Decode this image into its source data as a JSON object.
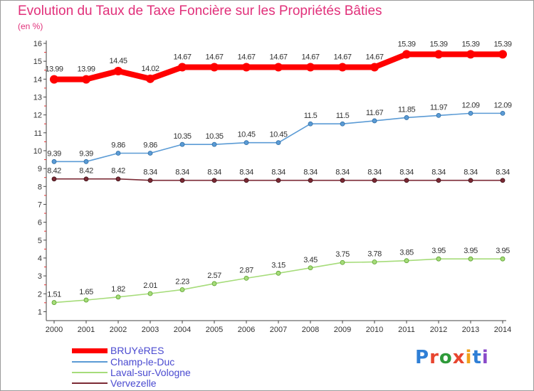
{
  "title": "Evolution du Taux de Taxe Foncière sur les Propriétés Bâties",
  "unit_label": "(en %)",
  "logo": {
    "text": "Proxiti",
    "colors": [
      "#2f7fd6",
      "#e8452f",
      "#2f9a3a",
      "#e8452f",
      "#f0a21b",
      "#2f7fd6",
      "#8a4ac8"
    ]
  },
  "chart_data": {
    "type": "line",
    "title": "Evolution du Taux de Taxe Foncière sur les Propriétés Bâties",
    "ylabel": "(en %)",
    "xlabel": "",
    "categories": [
      "2000",
      "2001",
      "2002",
      "2003",
      "2004",
      "2005",
      "2006",
      "2007",
      "2008",
      "2009",
      "2010",
      "2011",
      "2012",
      "2013",
      "2014"
    ],
    "ylim": [
      0.5,
      16
    ],
    "yticks": [
      1,
      2,
      3,
      4,
      5,
      6,
      7,
      8,
      9,
      10,
      11,
      12,
      13,
      14,
      15,
      16
    ],
    "grid": false,
    "legend_position": "bottom-left",
    "series": [
      {
        "name": "BRUYèRES",
        "color": "#ff0000",
        "values": [
          13.99,
          13.99,
          14.45,
          14.02,
          14.67,
          14.67,
          14.67,
          14.67,
          14.67,
          14.67,
          14.67,
          15.39,
          15.39,
          15.39,
          15.39
        ],
        "labels": [
          "13.99",
          "13.99",
          "14.45",
          "14.02",
          "14.67",
          "14.67",
          "14.67",
          "14.67",
          "14.67",
          "14.67",
          "14.67",
          "15.39",
          "15.39",
          "15.39",
          "15.39"
        ]
      },
      {
        "name": "Champ-le-Duc",
        "color": "#5b9bd5",
        "values": [
          9.39,
          9.39,
          9.86,
          9.86,
          10.35,
          10.35,
          10.45,
          10.45,
          11.5,
          11.5,
          11.67,
          11.85,
          11.97,
          12.09,
          12.09
        ],
        "labels": [
          "9.39",
          "9.39",
          "9.86",
          "9.86",
          "10.35",
          "10.35",
          "10.45",
          "10.45",
          "11.5",
          "11.5",
          "11.67",
          "11.85",
          "11.97",
          "12.09",
          "12.09"
        ]
      },
      {
        "name": "Laval-sur-Vologne",
        "color": "#a6dc7a",
        "values": [
          1.51,
          1.65,
          1.82,
          2.01,
          2.23,
          2.57,
          2.87,
          3.15,
          3.45,
          3.75,
          3.78,
          3.85,
          3.95,
          3.95,
          3.95
        ],
        "labels": [
          "1.51",
          "1.65",
          "1.82",
          "2.01",
          "2.23",
          "2.57",
          "2.87",
          "3.15",
          "3.45",
          "3.75",
          "3.78",
          "3.85",
          "3.95",
          "3.95",
          "3.95"
        ]
      },
      {
        "name": "Vervezelle",
        "color": "#7b2a35",
        "values": [
          8.42,
          8.42,
          8.42,
          8.34,
          8.34,
          8.34,
          8.34,
          8.34,
          8.34,
          8.34,
          8.34,
          8.34,
          8.34,
          8.34,
          8.34
        ],
        "labels": [
          "8.42",
          "8.42",
          "8.42",
          "8.34",
          "8.34",
          "8.34",
          "8.34",
          "8.34",
          "8.34",
          "8.34",
          "8.34",
          "8.34",
          "8.34",
          "8.34",
          "8.34"
        ]
      }
    ]
  }
}
